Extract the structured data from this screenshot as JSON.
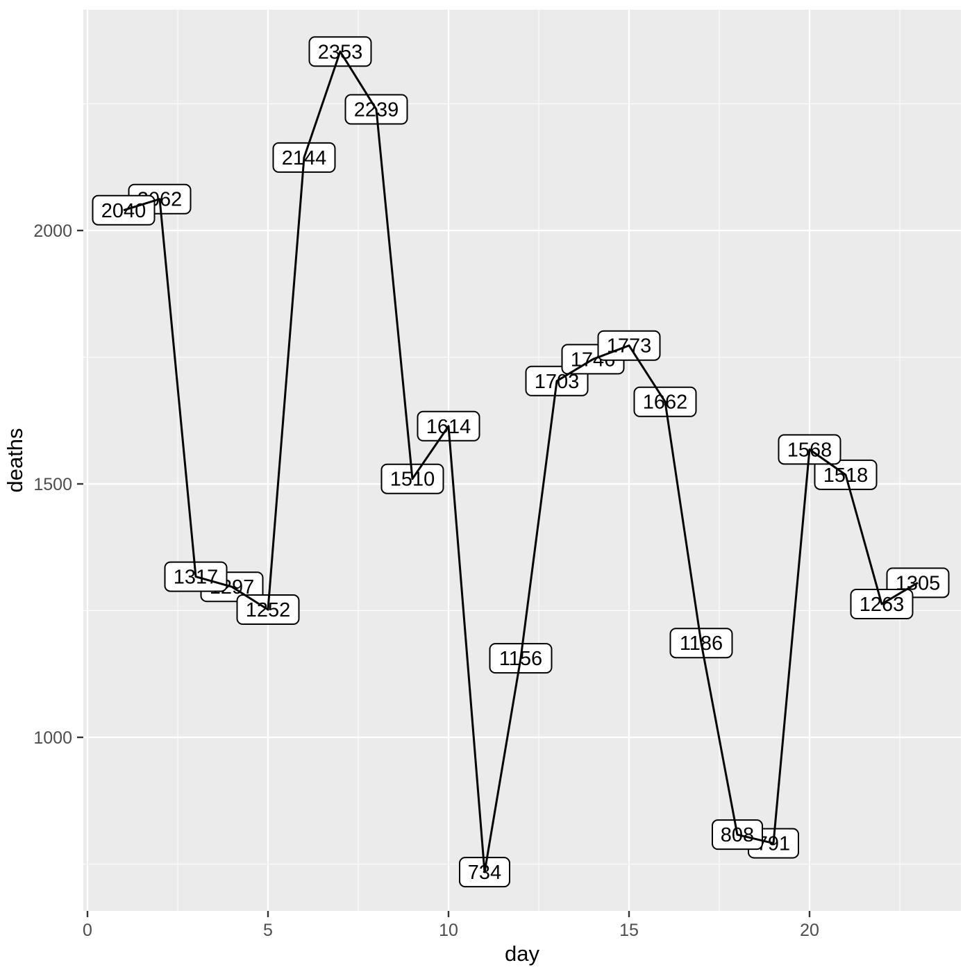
{
  "figure": {
    "xlabel": "day",
    "ylabel": "deaths"
  },
  "chart_data": {
    "type": "line",
    "title": "",
    "xlabel": "day",
    "ylabel": "deaths",
    "x": [
      1,
      2,
      3,
      4,
      5,
      6,
      7,
      8,
      9,
      10,
      11,
      12,
      13,
      14,
      15,
      16,
      17,
      18,
      19,
      20,
      21,
      22,
      23
    ],
    "y": [
      2040,
      2062,
      1317,
      1297,
      1252,
      2144,
      2353,
      2239,
      1510,
      1614,
      734,
      1156,
      1703,
      1746,
      1773,
      1662,
      1186,
      808,
      791,
      1568,
      1518,
      1263,
      1305
    ],
    "point_labels": [
      "2040",
      "2062",
      "1317",
      "1297",
      "1252",
      "2144",
      "2353",
      "2239",
      "1510",
      "1614",
      "734",
      "1156",
      "1703",
      "1746",
      "1773",
      "1662",
      "1186",
      "808",
      "791",
      "1568",
      "1518",
      "1263",
      "1305"
    ],
    "x_ticks": [
      0,
      5,
      10,
      15,
      20
    ],
    "x_minor_ticks": [
      2.5,
      7.5,
      12.5,
      17.5,
      22.5
    ],
    "y_ticks": [
      1000,
      1500,
      2000
    ],
    "y_minor_ticks": [
      750,
      1250,
      1750,
      2250
    ],
    "xlim": [
      -0.1,
      24.1
    ],
    "ylim": [
      655,
      2435
    ],
    "grid": true,
    "legend_position": "none",
    "label_paint_order": [
      2,
      1,
      4,
      3,
      5,
      6,
      7,
      8,
      9,
      10,
      11,
      12,
      13,
      14,
      15,
      16,
      17,
      19,
      18,
      21,
      20,
      23,
      22
    ],
    "style": {
      "panel_background": "#EBEBEB",
      "grid_color": "#FFFFFF",
      "line_color": "#000000",
      "label_background": "#FFFFFF",
      "label_border": "#000000",
      "label_text_color": "#000000",
      "tick_text_color": "#4D4D4D",
      "tick_mark_color": "#333333",
      "axis_title_color": "#000000"
    }
  }
}
